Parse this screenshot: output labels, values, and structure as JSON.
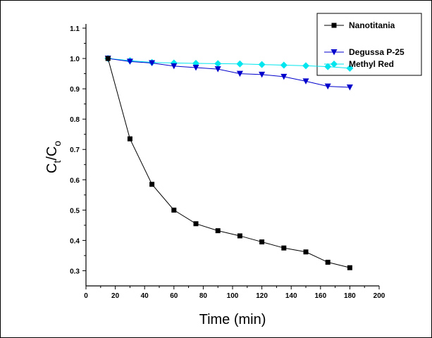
{
  "chart_data": {
    "type": "line",
    "title": "",
    "xlabel": "Time (min)",
    "ylabel": {
      "main": "C",
      "sub1": "t",
      "slash": "/C",
      "sub2": "o"
    },
    "xlim": [
      0,
      200
    ],
    "ylim": [
      0.25,
      1.1
    ],
    "xticks": [
      0,
      20,
      40,
      60,
      80,
      100,
      120,
      140,
      160,
      180,
      200
    ],
    "yticks": [
      0.3,
      0.4,
      0.5,
      0.6,
      0.7,
      0.8,
      0.9,
      1.0,
      1.1
    ],
    "ytick_labels": [
      "0.3",
      "0.4",
      "0.5",
      "0.6",
      "0.7",
      "0.8",
      "0.9",
      "1.0",
      "1.1"
    ],
    "grid": false,
    "legend_position": "top-right",
    "x": [
      15,
      30,
      45,
      60,
      75,
      90,
      105,
      120,
      135,
      150,
      165,
      180
    ],
    "series": [
      {
        "name": "Nanotitania",
        "color": "#000000",
        "marker": "square",
        "values": [
          1.0,
          0.735,
          0.585,
          0.5,
          0.455,
          0.432,
          0.415,
          0.395,
          0.375,
          0.362,
          0.328,
          0.31
        ]
      },
      {
        "name": "Degussa P-25",
        "color": "#0000cc",
        "marker": "triangle-down",
        "values": [
          1.0,
          0.99,
          0.985,
          0.975,
          0.97,
          0.965,
          0.95,
          0.947,
          0.94,
          0.925,
          0.908,
          0.905
        ]
      },
      {
        "name": "Methyl Red",
        "color": "#00e5ee",
        "marker": "diamond",
        "values": [
          1.0,
          0.993,
          0.987,
          0.985,
          0.984,
          0.983,
          0.982,
          0.98,
          0.978,
          0.976,
          0.973,
          0.968
        ]
      }
    ]
  }
}
